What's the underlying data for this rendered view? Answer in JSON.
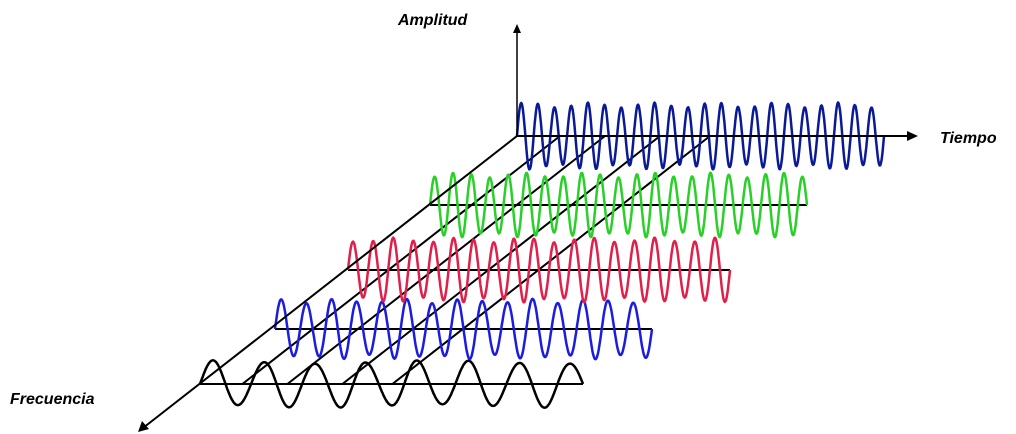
{
  "labels": {
    "amplitude": "Amplitud",
    "time": "Tiempo",
    "frequency": "Frecuencia"
  },
  "colors": {
    "axes": "#000000",
    "wave_1": "#000000",
    "wave_2": "#1c1ce0",
    "wave_3": "#e0204a",
    "wave_4": "#28d028",
    "wave_5": "#0a1a96"
  },
  "icons": [
    "arrow-head"
  ],
  "layers": [
    {
      "name": "wave-1",
      "color_key": "wave_1",
      "cycles": 7.5
    },
    {
      "name": "wave-2",
      "color_key": "wave_2",
      "cycles": 15
    },
    {
      "name": "wave-3",
      "color_key": "wave_3",
      "cycles": 19
    },
    {
      "name": "wave-4",
      "color_key": "wave_4",
      "cycles": 20.5
    },
    {
      "name": "wave-5",
      "color_key": "wave_5",
      "cycles": 22
    }
  ]
}
